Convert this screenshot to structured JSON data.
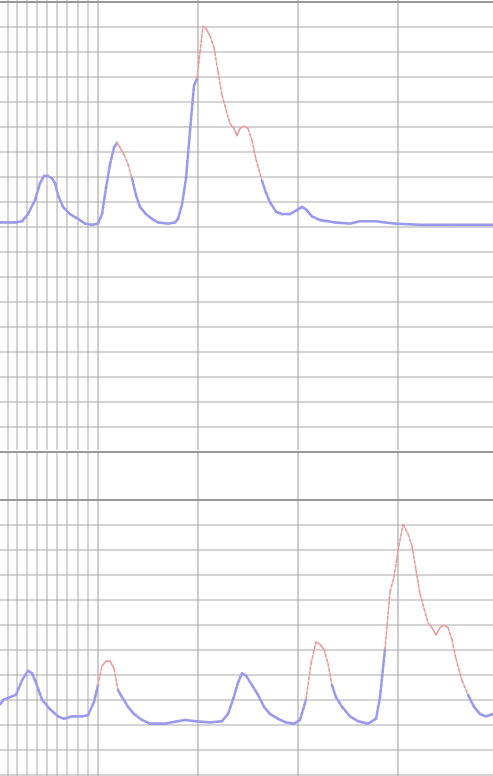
{
  "chart_data": [
    {
      "type": "line",
      "title": "",
      "xlabel": "",
      "ylabel": "",
      "grid": true,
      "xlim": [
        0,
        493
      ],
      "ylim": [
        0,
        9
      ],
      "colors": {
        "primary": "#9999ee",
        "highlight": "#ee9999",
        "grid": "#aaaaaa",
        "axis": "#999999"
      },
      "series": [
        {
          "points": [
            [
              0,
              0.15
            ],
            [
              15,
              0.15
            ],
            [
              22,
              0.2
            ],
            [
              28,
              0.5
            ],
            [
              35,
              1.1
            ],
            [
              40,
              1.8
            ],
            [
              44,
              2.1
            ],
            [
              48,
              2.1
            ],
            [
              52,
              2.0
            ],
            [
              55,
              1.8
            ],
            [
              58,
              1.3
            ],
            [
              63,
              0.8
            ],
            [
              70,
              0.5
            ],
            [
              78,
              0.3
            ],
            [
              85,
              0.1
            ],
            [
              92,
              0.05
            ],
            [
              98,
              0.1
            ],
            [
              102,
              0.5
            ],
            [
              106,
              1.6
            ],
            [
              110,
              2.6
            ],
            [
              114,
              3.3
            ],
            [
              117,
              3.5
            ],
            [
              120,
              3.3
            ],
            [
              124,
              3.0
            ],
            [
              128,
              2.6
            ],
            [
              132,
              2.0
            ],
            [
              136,
              1.3
            ],
            [
              140,
              0.8
            ],
            [
              146,
              0.5
            ],
            [
              152,
              0.3
            ],
            [
              158,
              0.15
            ],
            [
              168,
              0.1
            ],
            [
              175,
              0.15
            ],
            [
              178,
              0.3
            ],
            [
              182,
              0.9
            ],
            [
              186,
              2.0
            ],
            [
              190,
              4.0
            ],
            [
              194,
              5.9
            ],
            [
              197,
              6.2
            ],
            [
              200,
              7.3
            ],
            [
              203,
              8.4
            ],
            [
              206,
              8.3
            ],
            [
              210,
              8.0
            ],
            [
              214,
              7.5
            ],
            [
              218,
              6.5
            ],
            [
              222,
              5.5
            ],
            [
              226,
              4.9
            ],
            [
              230,
              4.3
            ],
            [
              234,
              4.1
            ],
            [
              237,
              3.8
            ],
            [
              240,
              4.1
            ],
            [
              244,
              4.2
            ],
            [
              248,
              4.1
            ],
            [
              252,
              3.6
            ],
            [
              256,
              2.8
            ],
            [
              262,
              1.9
            ],
            [
              266,
              1.4
            ],
            [
              270,
              1.0
            ],
            [
              276,
              0.6
            ],
            [
              282,
              0.5
            ],
            [
              290,
              0.5
            ],
            [
              298,
              0.7
            ],
            [
              302,
              0.8
            ],
            [
              306,
              0.7
            ],
            [
              312,
              0.4
            ],
            [
              320,
              0.25
            ],
            [
              335,
              0.15
            ],
            [
              350,
              0.1
            ],
            [
              360,
              0.2
            ],
            [
              375,
              0.2
            ],
            [
              395,
              0.1
            ],
            [
              420,
              0.05
            ],
            [
              450,
              0.05
            ],
            [
              493,
              0.05
            ]
          ],
          "highlight_segments": [
            [
              117,
              132
            ],
            [
              197,
              262
            ]
          ]
        }
      ]
    },
    {
      "type": "line",
      "title": "",
      "xlabel": "",
      "ylabel": "",
      "grid": true,
      "xlim": [
        0,
        493
      ],
      "ylim": [
        0,
        9
      ],
      "colors": {
        "primary": "#9999ee",
        "highlight": "#ee9999",
        "grid": "#aaaaaa",
        "axis": "#999999"
      },
      "series": [
        {
          "points": [
            [
              0,
              0.9
            ],
            [
              4,
              1.1
            ],
            [
              10,
              1.2
            ],
            [
              16,
              1.3
            ],
            [
              22,
              1.9
            ],
            [
              28,
              2.3
            ],
            [
              32,
              2.2
            ],
            [
              36,
              1.8
            ],
            [
              42,
              1.1
            ],
            [
              50,
              0.7
            ],
            [
              58,
              0.4
            ],
            [
              64,
              0.3
            ],
            [
              72,
              0.4
            ],
            [
              82,
              0.4
            ],
            [
              88,
              0.45
            ],
            [
              94,
              1.0
            ],
            [
              98,
              1.7
            ],
            [
              102,
              2.5
            ],
            [
              106,
              2.7
            ],
            [
              110,
              2.7
            ],
            [
              114,
              2.4
            ],
            [
              118,
              1.5
            ],
            [
              122,
              1.2
            ],
            [
              128,
              0.8
            ],
            [
              134,
              0.5
            ],
            [
              142,
              0.25
            ],
            [
              150,
              0.1
            ],
            [
              165,
              0.1
            ],
            [
              178,
              0.2
            ],
            [
              185,
              0.25
            ],
            [
              195,
              0.2
            ],
            [
              210,
              0.15
            ],
            [
              222,
              0.2
            ],
            [
              228,
              0.5
            ],
            [
              233,
              1.1
            ],
            [
              238,
              1.8
            ],
            [
              242,
              2.2
            ],
            [
              246,
              2.1
            ],
            [
              252,
              1.7
            ],
            [
              258,
              1.3
            ],
            [
              264,
              0.8
            ],
            [
              270,
              0.5
            ],
            [
              278,
              0.3
            ],
            [
              286,
              0.15
            ],
            [
              294,
              0.1
            ],
            [
              300,
              0.25
            ],
            [
              306,
              1.1
            ],
            [
              311,
              2.6
            ],
            [
              316,
              3.5
            ],
            [
              320,
              3.4
            ],
            [
              324,
              3.2
            ],
            [
              328,
              2.6
            ],
            [
              332,
              1.7
            ],
            [
              336,
              1.2
            ],
            [
              342,
              0.8
            ],
            [
              350,
              0.4
            ],
            [
              358,
              0.2
            ],
            [
              368,
              0.1
            ],
            [
              376,
              0.3
            ],
            [
              380,
              1.2
            ],
            [
              385,
              3.2
            ],
            [
              390,
              5.6
            ],
            [
              394,
              6.2
            ],
            [
              398,
              7.3
            ],
            [
              403,
              8.4
            ],
            [
              408,
              8.0
            ],
            [
              412,
              7.5
            ],
            [
              416,
              6.5
            ],
            [
              420,
              5.5
            ],
            [
              424,
              4.9
            ],
            [
              428,
              4.3
            ],
            [
              432,
              4.1
            ],
            [
              436,
              3.8
            ],
            [
              440,
              4.1
            ],
            [
              444,
              4.2
            ],
            [
              448,
              4.1
            ],
            [
              452,
              3.6
            ],
            [
              456,
              2.8
            ],
            [
              462,
              1.9
            ],
            [
              468,
              1.3
            ],
            [
              474,
              0.8
            ],
            [
              480,
              0.5
            ],
            [
              486,
              0.4
            ],
            [
              493,
              0.5
            ]
          ],
          "highlight_segments": [
            [
              98,
              118
            ],
            [
              306,
              332
            ],
            [
              384,
              466
            ]
          ]
        }
      ]
    }
  ]
}
